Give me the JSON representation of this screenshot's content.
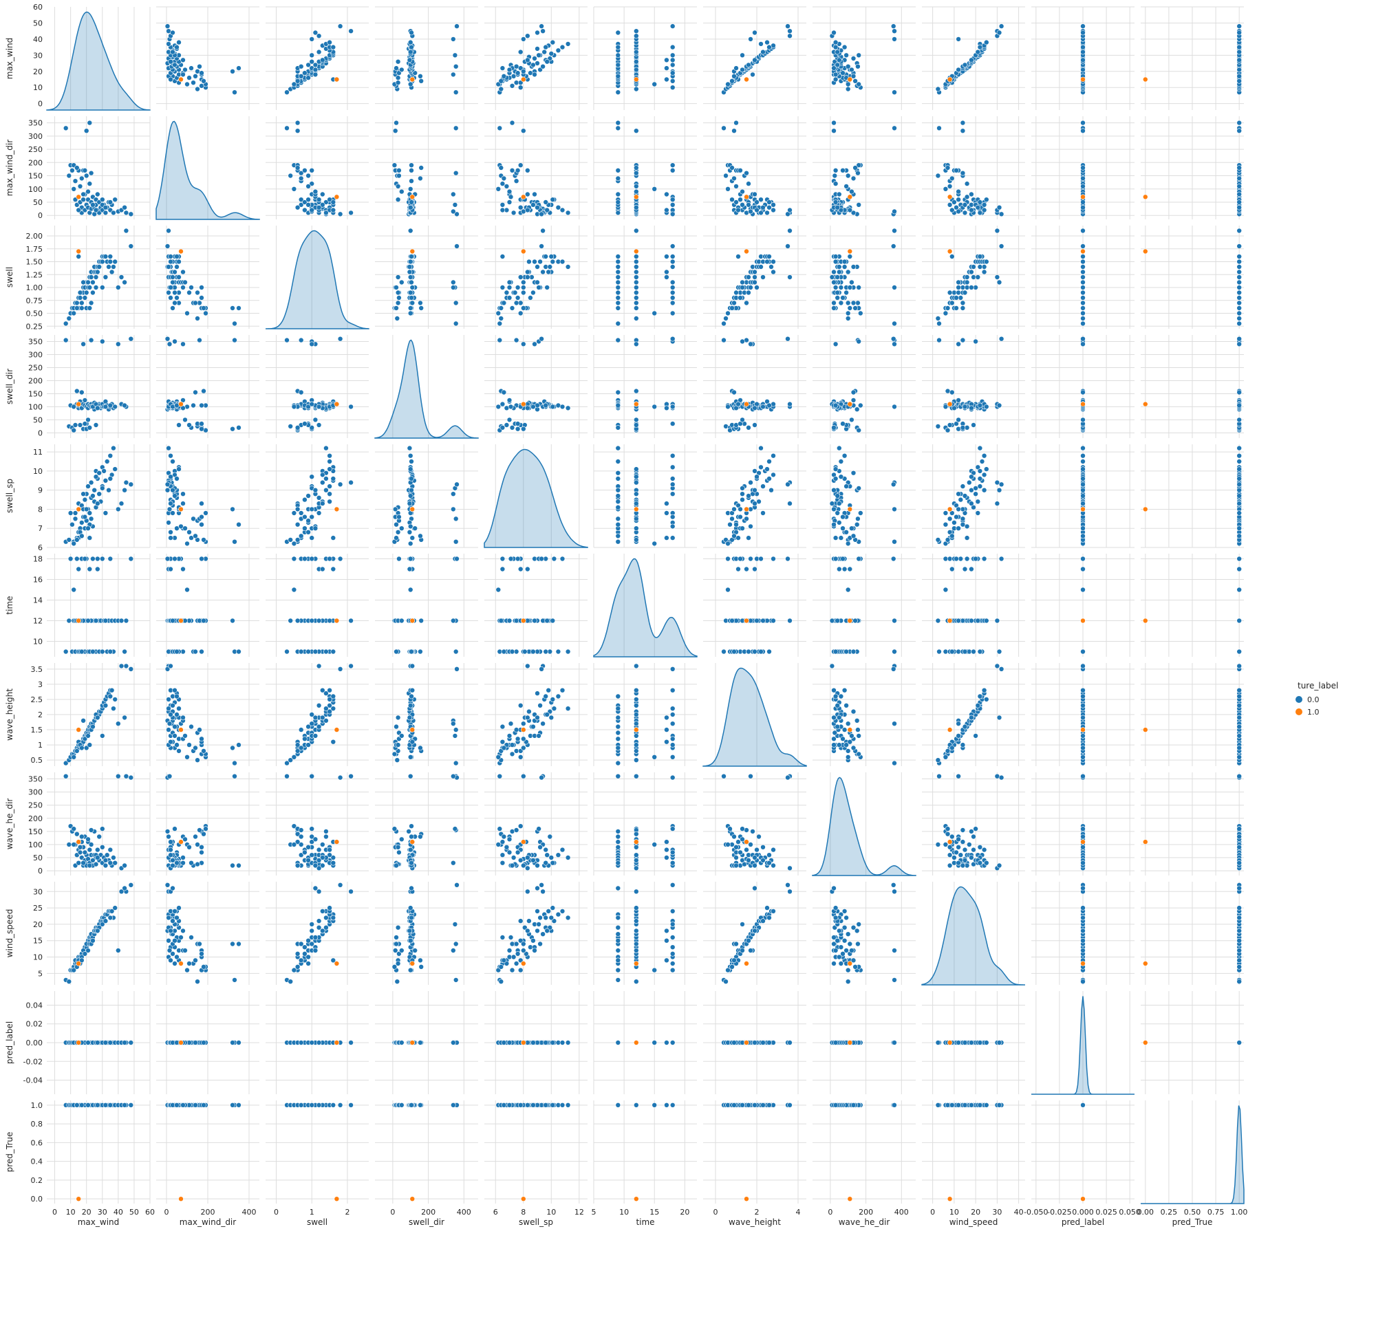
{
  "chart_data": {
    "type": "scatter",
    "kind": "pairplot",
    "diag_kind": "kde",
    "grid": true,
    "style": "whitegrid",
    "legend": {
      "title": "ture_label",
      "placement": "right",
      "entries": [
        {
          "label": "0.0",
          "color": "#1f77b4"
        },
        {
          "label": "1.0",
          "color": "#ff7f0e"
        }
      ]
    },
    "variables": [
      {
        "name": "max_wind",
        "range": [
          -4,
          60
        ],
        "ticks": [
          0,
          10,
          20,
          30,
          40,
          50,
          60
        ],
        "x_range": [
          -5,
          60
        ],
        "x_ticks": [
          0,
          10,
          20,
          30,
          40,
          50,
          60
        ]
      },
      {
        "name": "max_wind_dir",
        "range": [
          -15,
          375
        ],
        "ticks": [
          0,
          50,
          100,
          150,
          200,
          250,
          300,
          350
        ],
        "x_range": [
          -50,
          450
        ],
        "x_ticks": [
          0,
          200,
          400
        ]
      },
      {
        "name": "swell",
        "range": [
          0.2,
          2.2
        ],
        "ticks": [
          0.25,
          0.5,
          0.75,
          1.0,
          1.25,
          1.5,
          1.75,
          2.0
        ],
        "tick_labels": [
          "0.25",
          "0.50",
          "0.75",
          "1.00",
          "1.25",
          "1.50",
          "1.75",
          "2.00"
        ],
        "x_range": [
          -0.3,
          2.6
        ],
        "x_ticks": [
          0,
          1,
          2
        ]
      },
      {
        "name": "swell_dir",
        "range": [
          -20,
          375
        ],
        "ticks": [
          0,
          50,
          100,
          150,
          200,
          250,
          300,
          350
        ],
        "x_range": [
          -100,
          480
        ],
        "x_ticks": [
          0,
          200,
          400
        ]
      },
      {
        "name": "swell_sp",
        "range": [
          6.0,
          11.4
        ],
        "ticks": [
          6,
          7,
          8,
          9,
          10,
          11
        ],
        "x_range": [
          5.2,
          12.6
        ],
        "x_ticks": [
          6,
          8,
          10,
          12
        ]
      },
      {
        "name": "time",
        "range": [
          8.5,
          18.5
        ],
        "ticks": [
          10,
          12,
          14,
          16,
          18
        ],
        "x_range": [
          5,
          22
        ],
        "x_ticks": [
          5,
          10,
          15,
          20
        ]
      },
      {
        "name": "wave_height",
        "range": [
          0.3,
          3.7
        ],
        "ticks": [
          0.5,
          1.0,
          1.5,
          2.0,
          2.5,
          3.0,
          3.5
        ],
        "x_range": [
          -0.6,
          4.4
        ],
        "x_ticks": [
          0,
          2,
          4
        ]
      },
      {
        "name": "wave_he_dir",
        "range": [
          -18,
          375
        ],
        "ticks": [
          0,
          50,
          100,
          150,
          200,
          250,
          300,
          350
        ],
        "x_range": [
          -100,
          480
        ],
        "x_ticks": [
          0,
          200,
          400
        ]
      },
      {
        "name": "wind_speed",
        "range": [
          1.5,
          33
        ],
        "ticks": [
          5,
          10,
          15,
          20,
          25,
          30
        ],
        "x_range": [
          -5,
          43
        ],
        "x_ticks": [
          0,
          10,
          20,
          30,
          40
        ]
      },
      {
        "name": "pred_label",
        "range": [
          -0.055,
          0.055
        ],
        "ticks": [
          -0.04,
          -0.02,
          0.0,
          0.02,
          0.04
        ],
        "tick_labels": [
          "-0.04",
          "-0.02",
          "0.00",
          "0.02",
          "0.04"
        ],
        "x_range": [
          -0.055,
          0.055
        ],
        "x_ticks": [
          -0.05,
          -0.025,
          0.0,
          0.025,
          0.05
        ],
        "x_tick_labels": [
          "-0.050",
          "-0.025",
          "0.000",
          "0.025",
          "0.050"
        ]
      },
      {
        "name": "pred_True",
        "range": [
          -0.05,
          1.05
        ],
        "ticks": [
          0.0,
          0.2,
          0.4,
          0.6,
          0.8,
          1.0
        ],
        "tick_labels": [
          "0.0",
          "0.2",
          "0.4",
          "0.6",
          "0.8",
          "1.0"
        ],
        "x_range": [
          -0.05,
          1.05
        ],
        "x_ticks": [
          0.0,
          0.2,
          0.4,
          0.6,
          0.8,
          1.0
        ],
        "x_tick_labels": [
          "0.00",
          "0.25",
          "0.50",
          "0.75",
          "1.00"
        ],
        "x_tick_values": [
          0.0,
          0.25,
          0.5,
          0.75,
          1.0
        ]
      }
    ],
    "series": [
      {
        "name": "0.0",
        "color": "#1f77b4",
        "points": [
          [
            7,
            330,
            0.3,
            355,
            6.3,
            9,
            0.4,
            360,
            3,
            0,
            1
          ],
          [
            9,
            150,
            0.4,
            25,
            6.4,
            12,
            0.5,
            100,
            2.5,
            0,
            1
          ],
          [
            10,
            190,
            0.5,
            105,
            7.8,
            18,
            0.6,
            170,
            6,
            0,
            1
          ],
          [
            11,
            170,
            0.6,
            20,
            7.2,
            9,
            0.7,
            150,
            6,
            0,
            1
          ],
          [
            12,
            190,
            0.6,
            10,
            6.3,
            12,
            0.7,
            160,
            7,
            0,
            1
          ],
          [
            13,
            130,
            0.7,
            105,
            7.5,
            9,
            0.8,
            20,
            8,
            0,
            1
          ],
          [
            13,
            60,
            0.7,
            30,
            7.8,
            12,
            0.8,
            100,
            9,
            0,
            1
          ],
          [
            14,
            40,
            0.7,
            110,
            6.5,
            18,
            0.9,
            60,
            8,
            0,
            1
          ],
          [
            15,
            20,
            0.8,
            95,
            6.8,
            9,
            0.9,
            80,
            9,
            0,
            1
          ],
          [
            15,
            170,
            0.6,
            105,
            8.3,
            12,
            1.0,
            30,
            10,
            0,
            1
          ],
          [
            16,
            50,
            0.8,
            120,
            7.0,
            9,
            1.0,
            70,
            10,
            0,
            1
          ],
          [
            17,
            30,
            0.6,
            100,
            8.2,
            12,
            1.1,
            110,
            11,
            0,
            1
          ],
          [
            17,
            10,
            0.9,
            95,
            7.3,
            18,
            1.0,
            50,
            10,
            0,
            1
          ],
          [
            18,
            60,
            0.9,
            110,
            8.0,
            9,
            1.2,
            20,
            12,
            0,
            1
          ],
          [
            18,
            170,
            1.0,
            15,
            7.6,
            12,
            1.1,
            90,
            12,
            0,
            1
          ],
          [
            19,
            20,
            0.8,
            105,
            8.5,
            12,
            1.3,
            40,
            13,
            0,
            1
          ],
          [
            19,
            80,
            1.0,
            125,
            7.0,
            9,
            1.2,
            130,
            12,
            0,
            1
          ],
          [
            20,
            40,
            1.1,
            100,
            8.8,
            18,
            1.3,
            60,
            13,
            0,
            1
          ],
          [
            20,
            150,
            0.9,
            35,
            7.4,
            12,
            1.4,
            25,
            14,
            0,
            1
          ],
          [
            21,
            30,
            1.0,
            110,
            9.2,
            9,
            1.4,
            110,
            14,
            0,
            1
          ],
          [
            21,
            60,
            1.1,
            95,
            8.0,
            12,
            1.5,
            45,
            15,
            0,
            1
          ],
          [
            22,
            10,
            1.2,
            105,
            7.8,
            17,
            1.5,
            80,
            15,
            0,
            1
          ],
          [
            22,
            120,
            1.0,
            20,
            6.5,
            12,
            1.6,
            30,
            16,
            0,
            1
          ],
          [
            23,
            50,
            1.2,
            110,
            8.6,
            9,
            1.6,
            60,
            16,
            0,
            1
          ],
          [
            23,
            25,
            1.3,
            100,
            9.4,
            12,
            1.7,
            100,
            17,
            0,
            1
          ],
          [
            24,
            70,
            1.1,
            100,
            7.1,
            18,
            1.7,
            20,
            16,
            0,
            1
          ],
          [
            25,
            30,
            1.3,
            115,
            8.4,
            9,
            1.8,
            60,
            17,
            0,
            1
          ],
          [
            25,
            5,
            1.4,
            90,
            9.0,
            12,
            1.8,
            150,
            18,
            0,
            1
          ],
          [
            26,
            40,
            1.3,
            105,
            10.0,
            12,
            1.9,
            50,
            18,
            0,
            1
          ],
          [
            26,
            60,
            1.2,
            30,
            8.1,
            9,
            1.9,
            25,
            19,
            0,
            1
          ],
          [
            27,
            20,
            1.4,
            100,
            9.6,
            18,
            2.0,
            80,
            19,
            0,
            1
          ],
          [
            28,
            50,
            1.5,
            110,
            8.8,
            12,
            2.0,
            40,
            20,
            0,
            1
          ],
          [
            28,
            10,
            1.4,
            105,
            9.9,
            9,
            2.1,
            130,
            19,
            0,
            1
          ],
          [
            29,
            30,
            1.5,
            95,
            8.4,
            12,
            2.1,
            60,
            21,
            0,
            1
          ],
          [
            30,
            60,
            1.6,
            100,
            10.2,
            18,
            2.2,
            30,
            21,
            0,
            1
          ],
          [
            30,
            20,
            1.5,
            110,
            9.2,
            9,
            2.3,
            90,
            22,
            0,
            1
          ],
          [
            31,
            40,
            1.6,
            100,
            10.0,
            12,
            2.4,
            50,
            22,
            0,
            1
          ],
          [
            32,
            10,
            1.6,
            120,
            9.5,
            12,
            2.5,
            20,
            23,
            0,
            1
          ],
          [
            33,
            30,
            1.5,
            105,
            10.5,
            9,
            2.6,
            60,
            23,
            0,
            1
          ],
          [
            34,
            50,
            1.4,
            90,
            9.0,
            12,
            2.7,
            40,
            24,
            0,
            1
          ],
          [
            35,
            20,
            1.5,
            100,
            10.8,
            18,
            2.8,
            80,
            24,
            0,
            1
          ],
          [
            36,
            40,
            1.3,
            110,
            9.8,
            12,
            2.8,
            20,
            24,
            0,
            1
          ],
          [
            37,
            10,
            1.4,
            95,
            11.2,
            9,
            2.2,
            50,
            22,
            0,
            1
          ],
          [
            38,
            60,
            1.5,
            100,
            10.1,
            12,
            2.5,
            30,
            25,
            0,
            1
          ],
          [
            20,
            320,
            0.6,
            15,
            8.0,
            12,
            0.9,
            20,
            14,
            0,
            1
          ],
          [
            22,
            350,
            0.6,
            20,
            7.2,
            9,
            1.0,
            20,
            14,
            0,
            1
          ],
          [
            15,
            20,
            1.6,
            110,
            6.5,
            17,
            1.1,
            110,
            9,
            0,
            1
          ],
          [
            18,
            80,
            1.1,
            340,
            8.8,
            12,
            1.8,
            30,
            12,
            0,
            1
          ],
          [
            23,
            160,
            0.7,
            355,
            7.5,
            12,
            1.5,
            155,
            14,
            0,
            1
          ],
          [
            30,
            40,
            1.0,
            350,
            9.1,
            18,
            1.3,
            160,
            20,
            0,
            1
          ],
          [
            45,
            10,
            2.1,
            100,
            9.4,
            12,
            3.6,
            360,
            30,
            0,
            1
          ],
          [
            48,
            5,
            1.8,
            360,
            9.3,
            18,
            3.5,
            355,
            32,
            0,
            1
          ],
          [
            40,
            15,
            1.0,
            340,
            8.0,
            12,
            1.7,
            360,
            12,
            0,
            1
          ],
          [
            42,
            20,
            1.2,
            110,
            8.3,
            12,
            3.6,
            10,
            30,
            0,
            1
          ],
          [
            44,
            30,
            1.1,
            105,
            9.0,
            9,
            1.9,
            20,
            31,
            0,
            1
          ],
          [
            12,
            100,
            0.5,
            100,
            6.2,
            15,
            0.6,
            100,
            6,
            0,
            1
          ],
          [
            16,
            110,
            0.9,
            30,
            6.8,
            12,
            1.0,
            90,
            8,
            0,
            1
          ],
          [
            19,
            170,
            0.8,
            35,
            7.6,
            18,
            1.2,
            70,
            11,
            0,
            1
          ],
          [
            21,
            90,
            1.1,
            50,
            7.0,
            12,
            1.3,
            120,
            12,
            0,
            1
          ],
          [
            24,
            40,
            0.9,
            100,
            8.7,
            9,
            1.6,
            40,
            15,
            0,
            1
          ],
          [
            26,
            20,
            1.0,
            110,
            9.7,
            12,
            2.0,
            60,
            18,
            0,
            1
          ],
          [
            27,
            80,
            1.3,
            95,
            8.3,
            17,
            1.9,
            50,
            18,
            0,
            1
          ],
          [
            32,
            30,
            1.2,
            100,
            7.8,
            12,
            2.3,
            40,
            21,
            0,
            1
          ],
          [
            35,
            50,
            1.6,
            105,
            9.6,
            9,
            2.6,
            30,
            22,
            0,
            1
          ],
          [
            14,
            180,
            0.6,
            160,
            6.4,
            12,
            0.8,
            140,
            7,
            0,
            1
          ],
          [
            17,
            140,
            0.7,
            155,
            6.6,
            9,
            0.9,
            130,
            9,
            0,
            1
          ]
        ]
      },
      {
        "name": "1.0",
        "color": "#ff7f0e",
        "points": [
          [
            15,
            70,
            1.7,
            110,
            8.0,
            12,
            1.5,
            110,
            8,
            0,
            0
          ]
        ]
      }
    ]
  }
}
